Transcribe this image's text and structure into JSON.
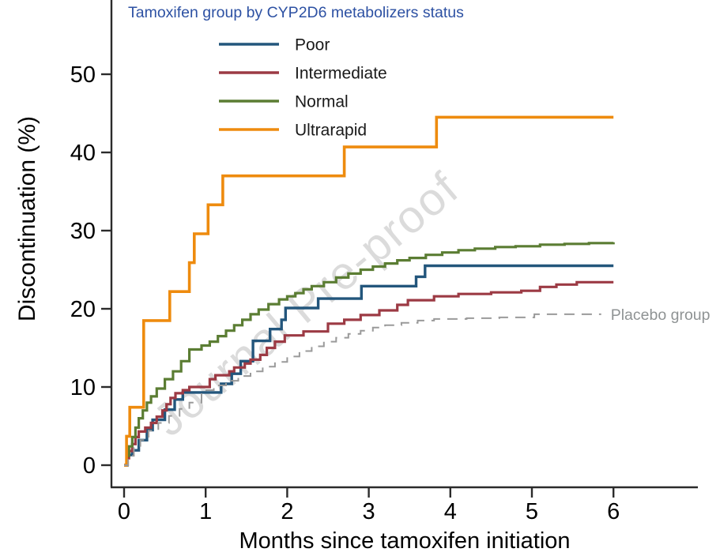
{
  "chart_data": {
    "type": "step-line",
    "title": "",
    "xlabel": "Months since tamoxifen initiation",
    "ylabel": "Discontinuation (%)",
    "xlim": [
      0,
      7.05
    ],
    "ylim": [
      0,
      55
    ],
    "xticks": [
      0,
      1,
      2,
      3,
      4,
      5,
      6
    ],
    "yticks": [
      0,
      10,
      20,
      30,
      40,
      50
    ],
    "grid": false,
    "legend_position": "top-left-inside",
    "legend_title": "Tamoxifen group by CYP2D6 metabolizers status",
    "legend_title_color": "#2d51a3",
    "axis_color": "#2b2b2b",
    "watermark": "Journal Pre-proof",
    "watermark_color": "#cfcfcf",
    "series": [
      {
        "name": "Poor",
        "color": "#23567c",
        "width": 3.4,
        "dash": null,
        "legend": true,
        "end_label": false,
        "points": [
          [
            0,
            0
          ],
          [
            0.04,
            1.3
          ],
          [
            0.1,
            1.9
          ],
          [
            0.18,
            3.2
          ],
          [
            0.28,
            4.5
          ],
          [
            0.35,
            5.8
          ],
          [
            0.5,
            7.1
          ],
          [
            0.62,
            8.4
          ],
          [
            0.72,
            9.3
          ],
          [
            1.19,
            10.4
          ],
          [
            1.32,
            11.7
          ],
          [
            1.43,
            13.3
          ],
          [
            1.58,
            15.9
          ],
          [
            1.79,
            17.4
          ],
          [
            1.93,
            18.6
          ],
          [
            1.98,
            20.1
          ],
          [
            2.38,
            21.3
          ],
          [
            2.91,
            22.9
          ],
          [
            3.58,
            24.1
          ],
          [
            3.69,
            25.5
          ],
          [
            6,
            25.5
          ]
        ]
      },
      {
        "name": "Intermediate",
        "color": "#9c3a44",
        "width": 3.2,
        "dash": null,
        "legend": true,
        "end_label": false,
        "points": [
          [
            0,
            0
          ],
          [
            0.03,
            0.9
          ],
          [
            0.06,
            1.8
          ],
          [
            0.1,
            2.7
          ],
          [
            0.14,
            3.6
          ],
          [
            0.18,
            4.3
          ],
          [
            0.26,
            4.8
          ],
          [
            0.33,
            5.4
          ],
          [
            0.4,
            6.2
          ],
          [
            0.47,
            7.0
          ],
          [
            0.52,
            7.8
          ],
          [
            0.57,
            8.6
          ],
          [
            0.63,
            9.2
          ],
          [
            0.72,
            9.6
          ],
          [
            0.8,
            10.0
          ],
          [
            1.05,
            11.0
          ],
          [
            1.12,
            11.5
          ],
          [
            1.29,
            12.0
          ],
          [
            1.35,
            12.5
          ],
          [
            1.48,
            13.0
          ],
          [
            1.55,
            13.5
          ],
          [
            1.67,
            14.1
          ],
          [
            1.75,
            15.0
          ],
          [
            1.85,
            15.8
          ],
          [
            1.97,
            16.6
          ],
          [
            2.2,
            17.1
          ],
          [
            2.5,
            18.1
          ],
          [
            2.7,
            18.6
          ],
          [
            2.9,
            19.2
          ],
          [
            3.13,
            19.8
          ],
          [
            3.35,
            20.5
          ],
          [
            3.48,
            21.1
          ],
          [
            3.8,
            21.6
          ],
          [
            4.1,
            21.9
          ],
          [
            4.5,
            22.1
          ],
          [
            4.87,
            22.3
          ],
          [
            5.1,
            22.8
          ],
          [
            5.3,
            23.1
          ],
          [
            5.55,
            23.4
          ],
          [
            6,
            23.4
          ]
        ]
      },
      {
        "name": "Normal",
        "color": "#5b7d33",
        "width": 3.2,
        "dash": null,
        "legend": true,
        "end_label": false,
        "points": [
          [
            0,
            0
          ],
          [
            0.03,
            1.2
          ],
          [
            0.06,
            2.4
          ],
          [
            0.1,
            3.6
          ],
          [
            0.14,
            4.8
          ],
          [
            0.18,
            6.0
          ],
          [
            0.23,
            7.0
          ],
          [
            0.28,
            8.0
          ],
          [
            0.33,
            8.8
          ],
          [
            0.4,
            9.8
          ],
          [
            0.5,
            11.0
          ],
          [
            0.6,
            12.0
          ],
          [
            0.7,
            13.3
          ],
          [
            0.8,
            14.8
          ],
          [
            0.95,
            15.3
          ],
          [
            1.05,
            15.8
          ],
          [
            1.15,
            16.5
          ],
          [
            1.25,
            17.2
          ],
          [
            1.35,
            17.9
          ],
          [
            1.45,
            18.6
          ],
          [
            1.55,
            19.3
          ],
          [
            1.65,
            19.9
          ],
          [
            1.77,
            20.6
          ],
          [
            1.9,
            21.2
          ],
          [
            2.0,
            21.6
          ],
          [
            2.1,
            22.0
          ],
          [
            2.2,
            22.5
          ],
          [
            2.3,
            22.9
          ],
          [
            2.45,
            23.4
          ],
          [
            2.6,
            24.0
          ],
          [
            2.75,
            24.5
          ],
          [
            2.9,
            25.0
          ],
          [
            3.05,
            25.4
          ],
          [
            3.2,
            25.8
          ],
          [
            3.35,
            26.2
          ],
          [
            3.5,
            26.5
          ],
          [
            3.7,
            26.9
          ],
          [
            3.9,
            27.2
          ],
          [
            4.1,
            27.5
          ],
          [
            4.3,
            27.7
          ],
          [
            4.55,
            27.9
          ],
          [
            4.8,
            28.0
          ],
          [
            5.1,
            28.2
          ],
          [
            5.4,
            28.3
          ],
          [
            5.7,
            28.4
          ],
          [
            6,
            28.5
          ]
        ]
      },
      {
        "name": "Ultrarapid",
        "color": "#ee8b0e",
        "width": 3.6,
        "dash": null,
        "legend": true,
        "end_label": false,
        "points": [
          [
            0,
            0
          ],
          [
            0.03,
            3.7
          ],
          [
            0.07,
            7.4
          ],
          [
            0.24,
            18.5
          ],
          [
            0.56,
            22.2
          ],
          [
            0.8,
            25.9
          ],
          [
            0.86,
            29.6
          ],
          [
            1.03,
            33.3
          ],
          [
            1.21,
            37.0
          ],
          [
            2.7,
            40.7
          ],
          [
            3.83,
            44.5
          ],
          [
            6,
            44.5
          ]
        ]
      },
      {
        "name": "Placebo group",
        "color": "#9a9a9a",
        "width": 2,
        "dash": "13 9",
        "legend": false,
        "end_label": true,
        "label_color": "#8f9394",
        "points": [
          [
            0,
            0
          ],
          [
            0.05,
            1.2
          ],
          [
            0.12,
            2.2
          ],
          [
            0.2,
            3.2
          ],
          [
            0.3,
            4.4
          ],
          [
            0.42,
            5.4
          ],
          [
            0.55,
            6.3
          ],
          [
            0.68,
            7.2
          ],
          [
            0.8,
            8.0
          ],
          [
            0.95,
            9.6
          ],
          [
            1.1,
            10.2
          ],
          [
            1.25,
            10.8
          ],
          [
            1.4,
            11.4
          ],
          [
            1.55,
            12.0
          ],
          [
            1.7,
            12.6
          ],
          [
            1.85,
            13.2
          ],
          [
            2.0,
            13.9
          ],
          [
            2.15,
            14.6
          ],
          [
            2.3,
            15.2
          ],
          [
            2.45,
            15.8
          ],
          [
            2.6,
            16.3
          ],
          [
            2.75,
            16.8
          ],
          [
            2.9,
            17.2
          ],
          [
            3.05,
            17.6
          ],
          [
            3.2,
            17.9
          ],
          [
            3.4,
            18.2
          ],
          [
            3.6,
            18.5
          ],
          [
            3.8,
            18.7
          ],
          [
            4.2,
            18.8
          ],
          [
            4.6,
            18.9
          ],
          [
            5.03,
            19.3
          ],
          [
            5.85,
            19.3
          ]
        ]
      }
    ]
  }
}
